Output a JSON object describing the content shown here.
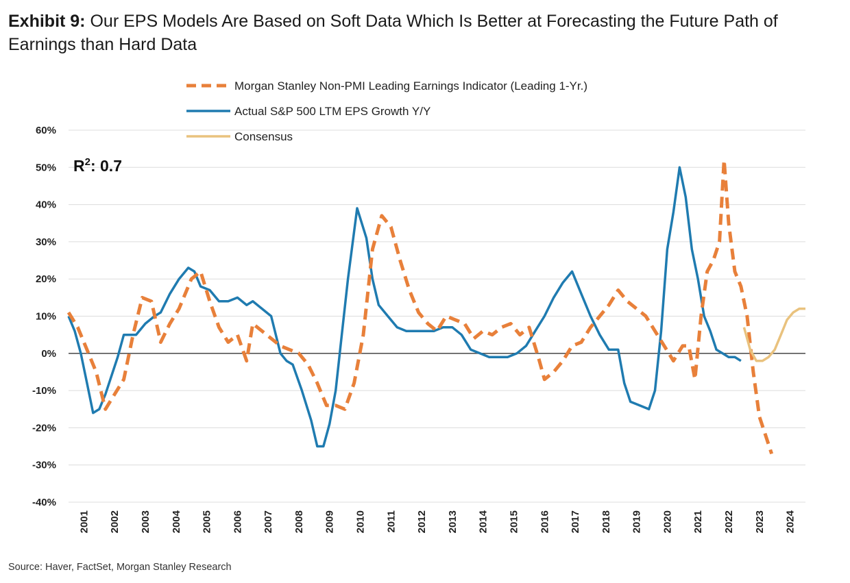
{
  "header": {
    "exhibit_label": "Exhibit 9:",
    "title_text": "Our EPS Models Are Based on Soft Data Which Is Better at Forecasting the Future Path of Earnings than Hard Data"
  },
  "annotation": {
    "r2_prefix": "R",
    "r2_sup": "2",
    "r2_value": ": 0.7"
  },
  "footer": {
    "source": "Source: Haver, FactSet, Morgan Stanley Research"
  },
  "colors": {
    "leading": "#E8803A",
    "actual": "#1F7BB0",
    "consensus": "#E9C27E",
    "grid": "#dcdcdc",
    "zero": "#555555"
  },
  "chart_data": {
    "type": "line",
    "title": "",
    "xlabel": "",
    "ylabel": "",
    "xlim": [
      2001,
      2025
    ],
    "ylim": [
      -40,
      60
    ],
    "y_ticks": [
      60,
      50,
      40,
      30,
      20,
      10,
      0,
      -10,
      -20,
      -30,
      -40
    ],
    "y_tick_labels": [
      "60%",
      "50%",
      "40%",
      "30%",
      "20%",
      "10%",
      "0%",
      "-10%",
      "-20%",
      "-30%",
      "-40%"
    ],
    "x_ticks": [
      2001,
      2002,
      2003,
      2004,
      2005,
      2006,
      2007,
      2008,
      2009,
      2010,
      2011,
      2012,
      2013,
      2014,
      2015,
      2016,
      2017,
      2018,
      2019,
      2020,
      2021,
      2022,
      2023,
      2024
    ],
    "x_tick_labels": [
      "2001",
      "2002",
      "2003",
      "2004",
      "2005",
      "2006",
      "2007",
      "2008",
      "2009",
      "2010",
      "2011",
      "2012",
      "2013",
      "2014",
      "2015",
      "2016",
      "2017",
      "2018",
      "2019",
      "2020",
      "2021",
      "2022",
      "2023",
      "2024"
    ],
    "grid": "horizontal",
    "legend_position": "top-center",
    "series": [
      {
        "name": "Morgan Stanley Non-PMI Leading Earnings Indicator (Leading 1-Yr.)",
        "style": "dashed",
        "x": [
          2001.0,
          2001.3,
          2001.6,
          2001.9,
          2002.2,
          2002.5,
          2002.8,
          2003.1,
          2003.4,
          2003.7,
          2004.0,
          2004.3,
          2004.6,
          2005.0,
          2005.3,
          2005.6,
          2005.9,
          2006.2,
          2006.5,
          2006.8,
          2007.0,
          2007.3,
          2007.6,
          2007.9,
          2008.2,
          2008.5,
          2008.8,
          2009.1,
          2009.4,
          2009.7,
          2010.0,
          2010.3,
          2010.6,
          2010.9,
          2011.2,
          2011.5,
          2011.8,
          2012.1,
          2012.4,
          2012.7,
          2013.0,
          2013.3,
          2013.6,
          2013.9,
          2014.2,
          2014.5,
          2014.8,
          2015.1,
          2015.4,
          2015.7,
          2016.0,
          2016.3,
          2016.5,
          2016.8,
          2017.1,
          2017.4,
          2017.7,
          2018.0,
          2018.3,
          2018.6,
          2018.9,
          2019.2,
          2019.5,
          2019.8,
          2020.1,
          2020.4,
          2020.7,
          2021.0,
          2021.2,
          2021.4,
          2021.6,
          2021.8,
          2022.0,
          2022.2,
          2022.35,
          2022.5,
          2022.7,
          2022.9,
          2023.1,
          2023.3,
          2023.5,
          2023.7,
          2023.9
        ],
        "values": [
          11,
          7,
          1,
          -5,
          -15,
          -11,
          -7,
          5,
          15,
          14,
          3,
          8,
          12,
          20,
          22,
          14,
          7,
          3,
          5,
          -2,
          8,
          6,
          4,
          2,
          1,
          0,
          -3,
          -8,
          -14,
          -14,
          -15,
          -8,
          5,
          28,
          37,
          34,
          25,
          17,
          11,
          8,
          6,
          10,
          9,
          8,
          4,
          6,
          5,
          7,
          8,
          5,
          7,
          -1,
          -7,
          -5,
          -2,
          2,
          3,
          7,
          10,
          13,
          17,
          14,
          12,
          10,
          6,
          2,
          -2,
          2,
          2,
          -7,
          10,
          22,
          25,
          30,
          52,
          35,
          22,
          18,
          10,
          -5,
          -17,
          -22,
          -27
        ]
      },
      {
        "name": "Actual S&P 500 LTM EPS Growth Y/Y",
        "style": "solid",
        "x": [
          2001.0,
          2001.2,
          2001.4,
          2001.6,
          2001.8,
          2002.0,
          2002.2,
          2002.4,
          2002.6,
          2002.8,
          2003.0,
          2003.2,
          2003.5,
          2003.8,
          2004.0,
          2004.3,
          2004.6,
          2004.9,
          2005.1,
          2005.3,
          2005.6,
          2005.9,
          2006.2,
          2006.5,
          2006.8,
          2007.0,
          2007.3,
          2007.6,
          2007.9,
          2008.1,
          2008.3,
          2008.6,
          2008.9,
          2009.1,
          2009.3,
          2009.5,
          2009.7,
          2009.9,
          2010.1,
          2010.4,
          2010.7,
          2010.9,
          2011.1,
          2011.4,
          2011.7,
          2012.0,
          2012.3,
          2012.6,
          2012.9,
          2013.2,
          2013.5,
          2013.8,
          2014.1,
          2014.4,
          2014.7,
          2015.0,
          2015.3,
          2015.6,
          2015.9,
          2016.2,
          2016.5,
          2016.8,
          2017.1,
          2017.4,
          2017.7,
          2018.0,
          2018.3,
          2018.6,
          2018.9,
          2019.1,
          2019.3,
          2019.6,
          2019.9,
          2020.1,
          2020.3,
          2020.5,
          2020.7,
          2020.9,
          2021.1,
          2021.3,
          2021.5,
          2021.7,
          2021.9,
          2022.1,
          2022.3,
          2022.5,
          2022.7,
          2022.9
        ],
        "values": [
          10,
          6,
          0,
          -8,
          -16,
          -15,
          -11,
          -6,
          -1,
          5,
          5,
          5,
          8,
          10,
          11,
          16,
          20,
          23,
          22,
          18,
          17,
          14,
          14,
          15,
          13,
          14,
          12,
          10,
          0,
          -2,
          -3,
          -10,
          -18,
          -25,
          -25,
          -19,
          -10,
          5,
          20,
          39,
          31,
          20,
          13,
          10,
          7,
          6,
          6,
          6,
          6,
          7,
          7,
          5,
          1,
          0,
          -1,
          -1,
          -1,
          0,
          2,
          6,
          10,
          15,
          19,
          22,
          16,
          10,
          5,
          1,
          1,
          -8,
          -13,
          -14,
          -15,
          -10,
          6,
          28,
          38,
          50,
          42,
          28,
          20,
          10,
          6,
          1,
          0,
          -1,
          -1,
          -2
        ],
        "note": ""
      },
      {
        "name": "Consensus",
        "style": "solid",
        "x": [
          2023.0,
          2023.2,
          2023.4,
          2023.6,
          2023.8,
          2024.0,
          2024.2,
          2024.4,
          2024.6,
          2024.8,
          2025.0
        ],
        "values": [
          7,
          1,
          -2,
          -2,
          -1,
          1,
          5,
          9,
          11,
          12,
          12
        ]
      }
    ]
  }
}
